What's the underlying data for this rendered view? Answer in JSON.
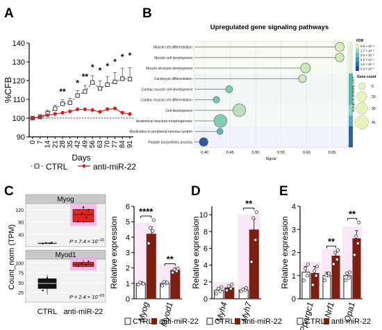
{
  "panels": {
    "A": "A",
    "B": "B",
    "C": "C",
    "D": "D",
    "E": "E"
  },
  "colors": {
    "ctrl": "#ffffff",
    "anti": "#7b1f12",
    "red": "#d7191c",
    "pinkBand": "#f4c9ee",
    "boxRed": "#e5211d",
    "boxPink": "#f2a6e6"
  },
  "chart_data": [
    {
      "id": "A",
      "type": "line",
      "ylabel": "%CFB",
      "xlabel": "Days",
      "x": [
        0,
        7,
        14,
        21,
        28,
        35,
        42,
        49,
        56,
        63,
        70,
        77,
        84,
        91
      ],
      "ylim": [
        90,
        140
      ],
      "yticks": [
        90,
        100,
        110,
        120,
        130,
        140
      ],
      "baseline": 100,
      "series": [
        {
          "name": "CTRL",
          "values": [
            100,
            100.6,
            102.6,
            105,
            107.6,
            108.2,
            112,
            114.2,
            119,
            115.8,
            117.8,
            119.3,
            121,
            120.8
          ],
          "err": [
            0.5,
            1.2,
            1.6,
            1.8,
            2.2,
            2.4,
            2.6,
            3.2,
            3.6,
            4.0,
            4.4,
            5.0,
            5.6,
            6.0
          ]
        },
        {
          "name": "anti-miR-22",
          "values": [
            100,
            100.6,
            101.5,
            102.2,
            102.8,
            103.5,
            104.6,
            104.6,
            104.2,
            103.3,
            104.7,
            105.1,
            102.8,
            102.1
          ],
          "err": [
            0.3,
            0.5,
            0.6,
            0.6,
            0.7,
            0.7,
            0.8,
            0.8,
            0.8,
            0.8,
            0.8,
            0.8,
            0.8,
            0.8
          ]
        }
      ],
      "significance": [
        {
          "x": 28,
          "label": "**",
          "y": 112.6
        },
        {
          "x": 42,
          "label": "*",
          "y": 117.2
        },
        {
          "x": 49,
          "label": "**",
          "y": 120.6
        },
        {
          "x": 56,
          "label": "*",
          "y": 125.5
        },
        {
          "x": 63,
          "label": "*",
          "y": 123.8
        },
        {
          "x": 70,
          "label": "*",
          "y": 126.2
        },
        {
          "x": 77,
          "label": "*",
          "y": 128.5
        },
        {
          "x": 84,
          "label": "*",
          "y": 131.2
        },
        {
          "x": 91,
          "label": "*",
          "y": 131.8
        }
      ]
    },
    {
      "id": "B",
      "type": "scatter",
      "title": "Upregulated gene signaling pathways",
      "xlabel": "Signal",
      "xlim": [
        0.38,
        0.68
      ],
      "xticks": [
        0.4,
        0.45,
        0.5,
        0.55,
        0.6,
        0.65
      ],
      "categories": [
        "Muscle cell differentiation",
        "Muscle cell development",
        "Muscle structure development",
        "Cardiocyte differentiation",
        "Cardiac muscle cell development",
        "Cardiac muscle cell differentiation",
        "Cell development",
        "Anatomical structure morphogenesis",
        "Myelination in peripheral nervous system",
        "Peptide biosynthetic process"
      ],
      "signal": [
        0.665,
        0.665,
        0.598,
        0.592,
        0.448,
        0.423,
        0.468,
        0.431,
        0.43,
        0.398
      ],
      "gene_count": [
        14,
        12,
        18,
        8,
        5,
        4,
        38,
        40,
        3,
        12
      ],
      "fdr_level": [
        0.02,
        0.05,
        0.07,
        0.05,
        0.3,
        0.35,
        0.12,
        0.3,
        0.45,
        0.9
      ],
      "fdr_legend_title": "FDR",
      "fdr_legend": [
        "9.3 × 10⁻⁶",
        "1.7 × 10⁻⁵",
        "3.3 × 10⁻⁵",
        "6.6 × 10⁻⁵",
        "1.2 × 10⁻⁴",
        "2.3 × 10⁻⁵"
      ],
      "gene_count_title": "Gene count",
      "gene_count_legend": [
        5,
        20,
        30,
        45
      ],
      "groups_label": "Groups at similarity ≥ 0.7"
    },
    {
      "id": "C-left",
      "type": "box",
      "ylabel": "Count_norm (TPM)",
      "categories": [
        "CTRL",
        "anti-miR-22"
      ],
      "facets": [
        {
          "name": "Myog",
          "ylim": [
            0,
            140
          ],
          "yticks": [
            40,
            80,
            120
          ],
          "ctrl": {
            "q1": 10,
            "median": 12,
            "q3": 13,
            "min": 9,
            "max": 14,
            "points": [
              10,
              11,
              12,
              13
            ]
          },
          "anti": {
            "q1": 80,
            "median": 104,
            "q3": 121,
            "min": 76,
            "max": 131,
            "points": [
              82,
              95,
              108,
              120,
              128
            ]
          },
          "pvalue_prefix": "P = 7.4 × 10",
          "pvalue_exp": "−16"
        },
        {
          "name": "Myod1",
          "ylim": [
            0,
            110
          ],
          "yticks": [
            25,
            50,
            75,
            100
          ],
          "ctrl": {
            "q1": 35,
            "median": 48,
            "q3": 60,
            "min": 20,
            "max": 70,
            "points": [
              30,
              40,
              45,
              55,
              62
            ]
          },
          "anti": {
            "q1": 91,
            "median": 97,
            "q3": 102,
            "min": 88,
            "max": 108,
            "points": [
              92,
              95,
              99,
              104
            ]
          },
          "pvalue_prefix": "P = 2.4 × 10",
          "pvalue_exp": "−03"
        }
      ]
    },
    {
      "id": "C-right",
      "type": "bar",
      "ylabel": "Relative expression",
      "categories": [
        "Myog",
        "Myod1"
      ],
      "ylim": [
        0,
        6
      ],
      "yticks": [
        0,
        1,
        2,
        3,
        4,
        5,
        6
      ],
      "series": [
        {
          "name": "CTRL",
          "values": [
            1.0,
            1.0
          ],
          "err": [
            0.1,
            0.15
          ],
          "points": [
            [
              0.92,
              1.0,
              1.05,
              0.98
            ],
            [
              0.85,
              1.0,
              1.1,
              1.05
            ]
          ]
        },
        {
          "name": "anti-miR-22",
          "values": [
            4.2,
            1.85
          ],
          "err": [
            0.45,
            0.15
          ],
          "points": [
            [
              3.6,
              4.4,
              4.6,
              5.1
            ],
            [
              1.7,
              1.8,
              1.9,
              1.95
            ]
          ]
        }
      ],
      "significance": [
        "****",
        "**"
      ]
    },
    {
      "id": "D",
      "type": "bar",
      "ylabel": "Relative expression",
      "categories": [
        "Myh4",
        "Myh7"
      ],
      "ylim": [
        0,
        11
      ],
      "yticks": [
        0,
        2,
        4,
        6,
        8,
        10
      ],
      "series": [
        {
          "name": "CTRL",
          "values": [
            1.0,
            1.05
          ],
          "err": [
            0.3,
            0.2
          ],
          "points": [
            [
              0.6,
              0.9,
              1.2,
              1.4
            ],
            [
              0.9,
              1.0,
              1.1,
              1.3
            ]
          ]
        },
        {
          "name": "anti-miR-22",
          "values": [
            1.3,
            8.2
          ],
          "err": [
            0.2,
            1.3
          ],
          "points": [
            [
              1.0,
              1.2,
              1.5,
              1.7
            ],
            [
              4.4,
              7.0,
              9.6,
              10.3
            ]
          ]
        }
      ],
      "significance": [
        "",
        "**"
      ]
    },
    {
      "id": "E",
      "type": "bar",
      "ylabel": "Relative expression",
      "categories": [
        "Ppargc1",
        "Nrf1",
        "Opa1"
      ],
      "ylim": [
        0,
        4
      ],
      "yticks": [
        0,
        1,
        2,
        3,
        4
      ],
      "series": [
        {
          "name": "CTRL",
          "values": [
            1.15,
            1.0,
            1.0
          ],
          "err": [
            0.25,
            0.15,
            0.1
          ],
          "points": [
            [
              0.8,
              1.0,
              1.3,
              1.5
            ],
            [
              0.8,
              1.0,
              1.0,
              1.1
            ],
            [
              0.8,
              0.9,
              1.1,
              1.15
            ]
          ]
        },
        {
          "name": "anti-miR-22",
          "values": [
            1.1,
            1.85,
            2.6
          ],
          "err": [
            0.3,
            0.15,
            0.35
          ],
          "points": [
            [
              0.6,
              1.0,
              1.2,
              1.4
            ],
            [
              1.5,
              1.7,
              2.0,
              2.1
            ],
            [
              1.9,
              2.4,
              2.7,
              3.3
            ]
          ]
        }
      ],
      "significance": [
        "",
        "**",
        "**"
      ]
    }
  ]
}
